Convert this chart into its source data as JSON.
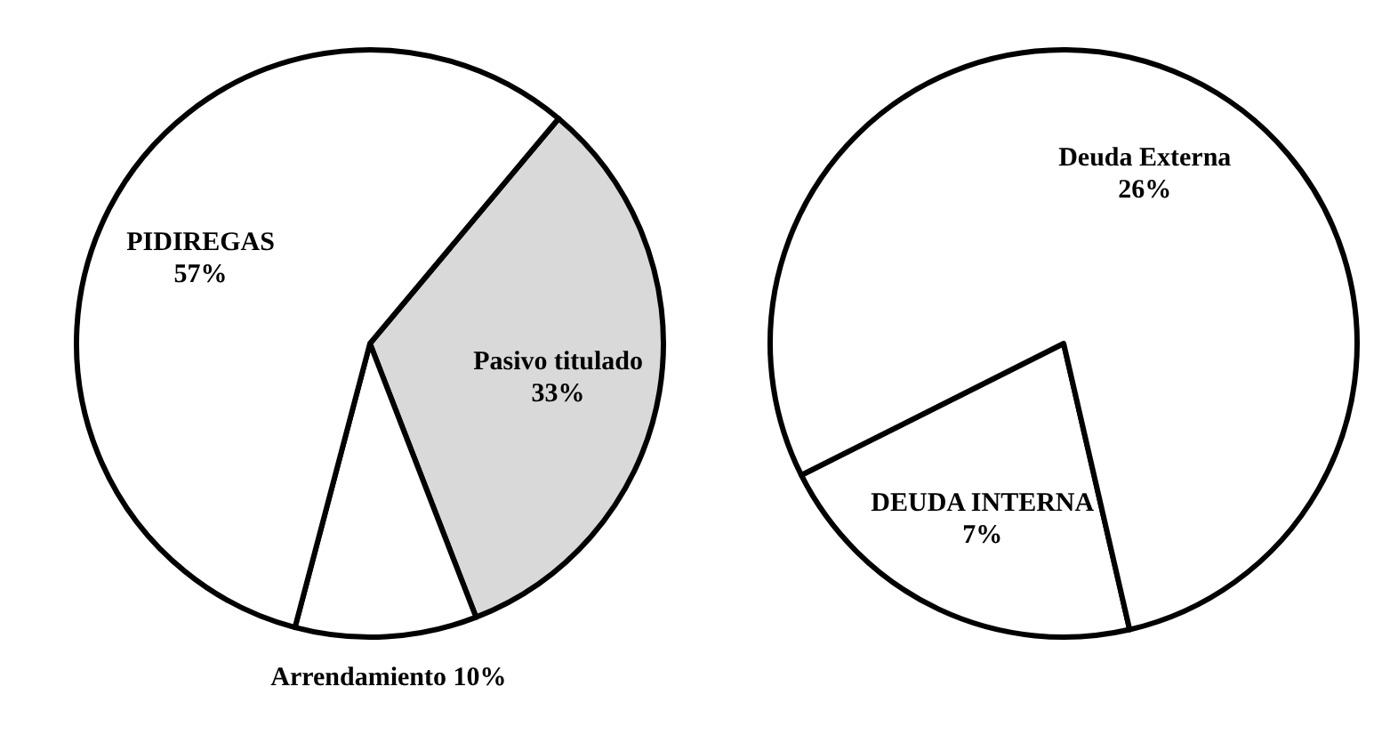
{
  "chart_data": [
    {
      "type": "pie",
      "categories": [
        "Pasivo titulado",
        "Arrendamiento",
        "PIDIREGAS"
      ],
      "values": [
        33,
        10,
        57
      ],
      "value_labels": [
        "33%",
        "10%",
        "57%"
      ],
      "colors": [
        "#d9d9d9",
        "#ffffff",
        "#ffffff"
      ]
    },
    {
      "type": "pie",
      "categories": [
        "DEUDA INTERNA",
        "Deuda Externa"
      ],
      "values": [
        7,
        26
      ],
      "value_labels": [
        "7%",
        "26%"
      ],
      "colors": [
        "#ffffff",
        "#ffffff"
      ]
    }
  ]
}
